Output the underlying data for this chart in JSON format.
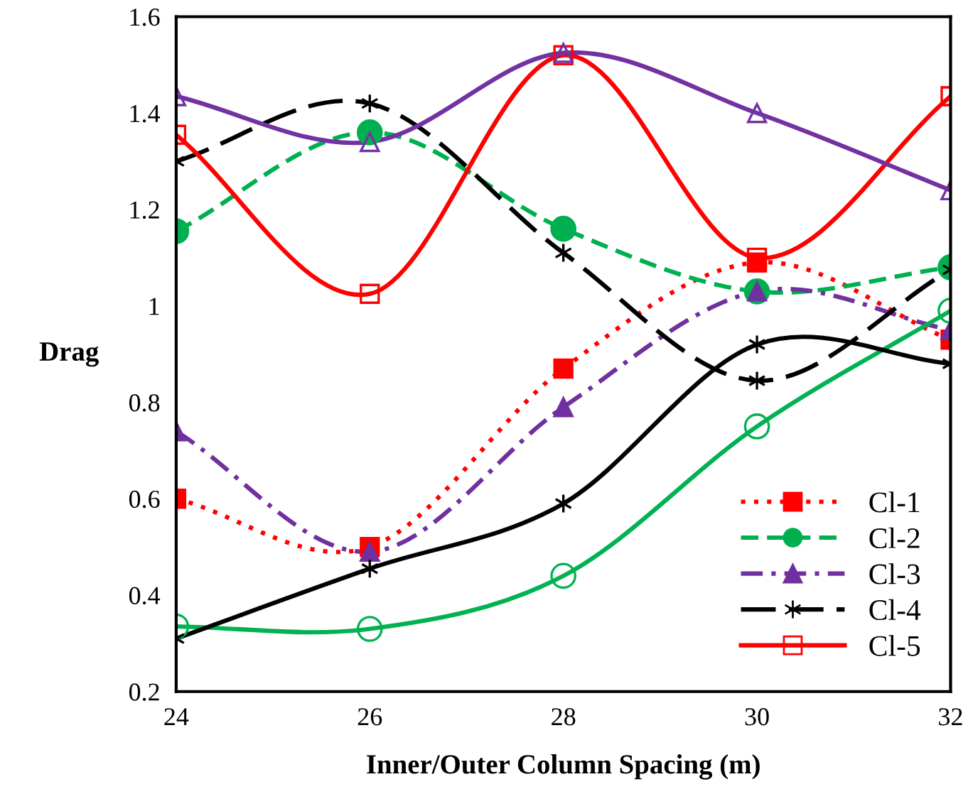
{
  "chart_data": {
    "type": "line",
    "xlabel": "Inner/Outer Column Spacing (m)",
    "ylabel": "Drag",
    "x": [
      24,
      26,
      28,
      30,
      32
    ],
    "xlim": [
      24,
      32
    ],
    "xticks": [
      24,
      26,
      28,
      30,
      32
    ],
    "ylim": [
      0.2,
      1.6
    ],
    "yticks": [
      0.2,
      0.4,
      0.6,
      0.8,
      1,
      1.2,
      1.4,
      1.6
    ],
    "grid": false,
    "legend": "bottom right",
    "series": [
      {
        "name": "Cl-1",
        "color": "#ff0000",
        "marker": "square",
        "line_style": "dotted",
        "values": [
          0.6,
          0.5,
          0.87,
          1.09,
          0.93
        ]
      },
      {
        "name": "Cl-2",
        "color": "#00b050",
        "marker": "circle",
        "line_style": "dashed",
        "values": [
          1.155,
          1.36,
          1.16,
          1.03,
          1.08
        ]
      },
      {
        "name": "Cl-3",
        "color": "#7030a0",
        "marker": "triangle",
        "line_style": "dashdot",
        "values": [
          0.74,
          0.49,
          0.79,
          1.03,
          0.95
        ]
      },
      {
        "name": "Cl-4",
        "color": "#000000",
        "marker": "cross",
        "line_style": "longdash",
        "values": [
          1.3,
          1.42,
          1.11,
          0.845,
          1.075
        ]
      },
      {
        "name": "Cl-5",
        "color": "#fe0202",
        "marker": "square",
        "line_style": "solid",
        "values": [
          1.355,
          1.025,
          1.52,
          1.1,
          1.435
        ]
      },
      {
        "color": "#7232a2",
        "marker": "triangle",
        "line_style": "solid",
        "values": [
          1.435,
          1.34,
          1.525,
          1.4,
          1.24
        ]
      },
      {
        "color": "#02b252",
        "marker": "circle",
        "line_style": "solid",
        "values": [
          0.335,
          0.33,
          0.44,
          0.75,
          0.99
        ]
      },
      {
        "color": "#020202",
        "marker": "cross",
        "line_style": "solid",
        "values": [
          0.31,
          0.455,
          0.59,
          0.92,
          0.88
        ]
      }
    ]
  }
}
